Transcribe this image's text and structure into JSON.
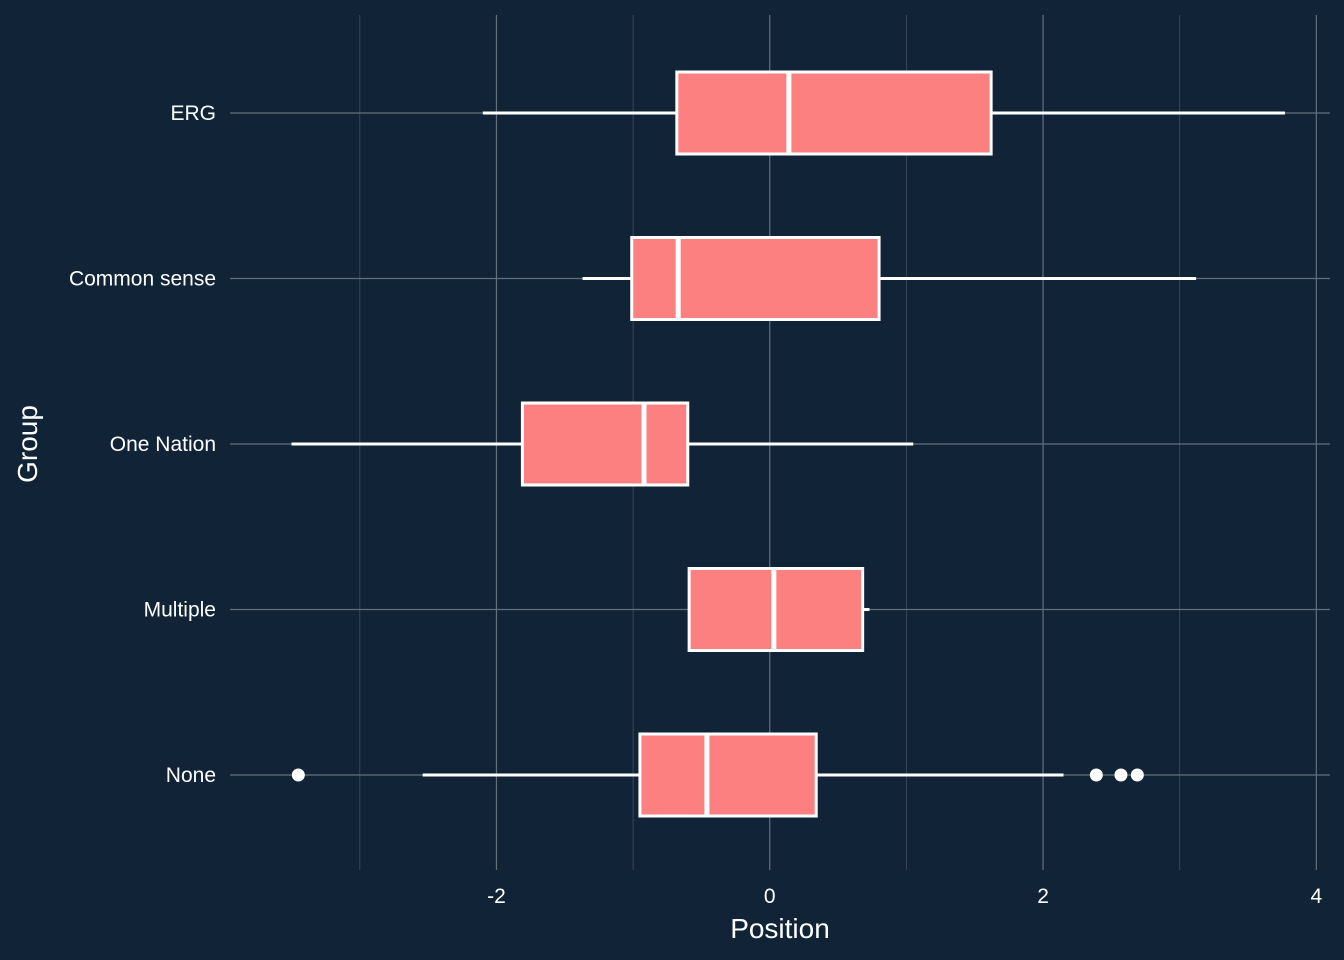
{
  "chart_data": {
    "type": "boxplot",
    "orientation": "horizontal",
    "xlabel": "Position",
    "ylabel": "Group",
    "xlim": [
      -3.95,
      4.1
    ],
    "x_ticks": [
      -2,
      0,
      2,
      4
    ],
    "x_tick_labels": [
      "-2",
      "0",
      "2",
      "4"
    ],
    "x_minor_ticks": [
      -3,
      -1,
      1,
      3
    ],
    "grid": true,
    "colors": {
      "background": "#112437",
      "box_fill": "#fd8080",
      "box_stroke": "#ffffff",
      "grid": "#62707d"
    },
    "categories": [
      "ERG",
      "Common sense",
      "One Nation",
      "Multiple",
      "None"
    ],
    "boxes": [
      {
        "group": "ERG",
        "whisker_low": -2.1,
        "q1": -0.68,
        "median": 0.14,
        "q3": 1.62,
        "whisker_high": 3.77,
        "outliers": []
      },
      {
        "group": "Common sense",
        "whisker_low": -1.37,
        "q1": -1.01,
        "median": -0.67,
        "q3": 0.8,
        "whisker_high": 3.12,
        "outliers": []
      },
      {
        "group": "One Nation",
        "whisker_low": -3.5,
        "q1": -1.81,
        "median": -0.92,
        "q3": -0.6,
        "whisker_high": 1.05,
        "outliers": []
      },
      {
        "group": "Multiple",
        "whisker_low": -0.59,
        "q1": -0.59,
        "median": 0.03,
        "q3": 0.68,
        "whisker_high": 0.73,
        "outliers": []
      },
      {
        "group": "None",
        "whisker_low": -2.54,
        "q1": -0.95,
        "median": -0.46,
        "q3": 0.34,
        "whisker_high": 2.15,
        "outliers": [
          -3.45,
          2.39,
          2.57,
          2.69
        ]
      }
    ]
  }
}
